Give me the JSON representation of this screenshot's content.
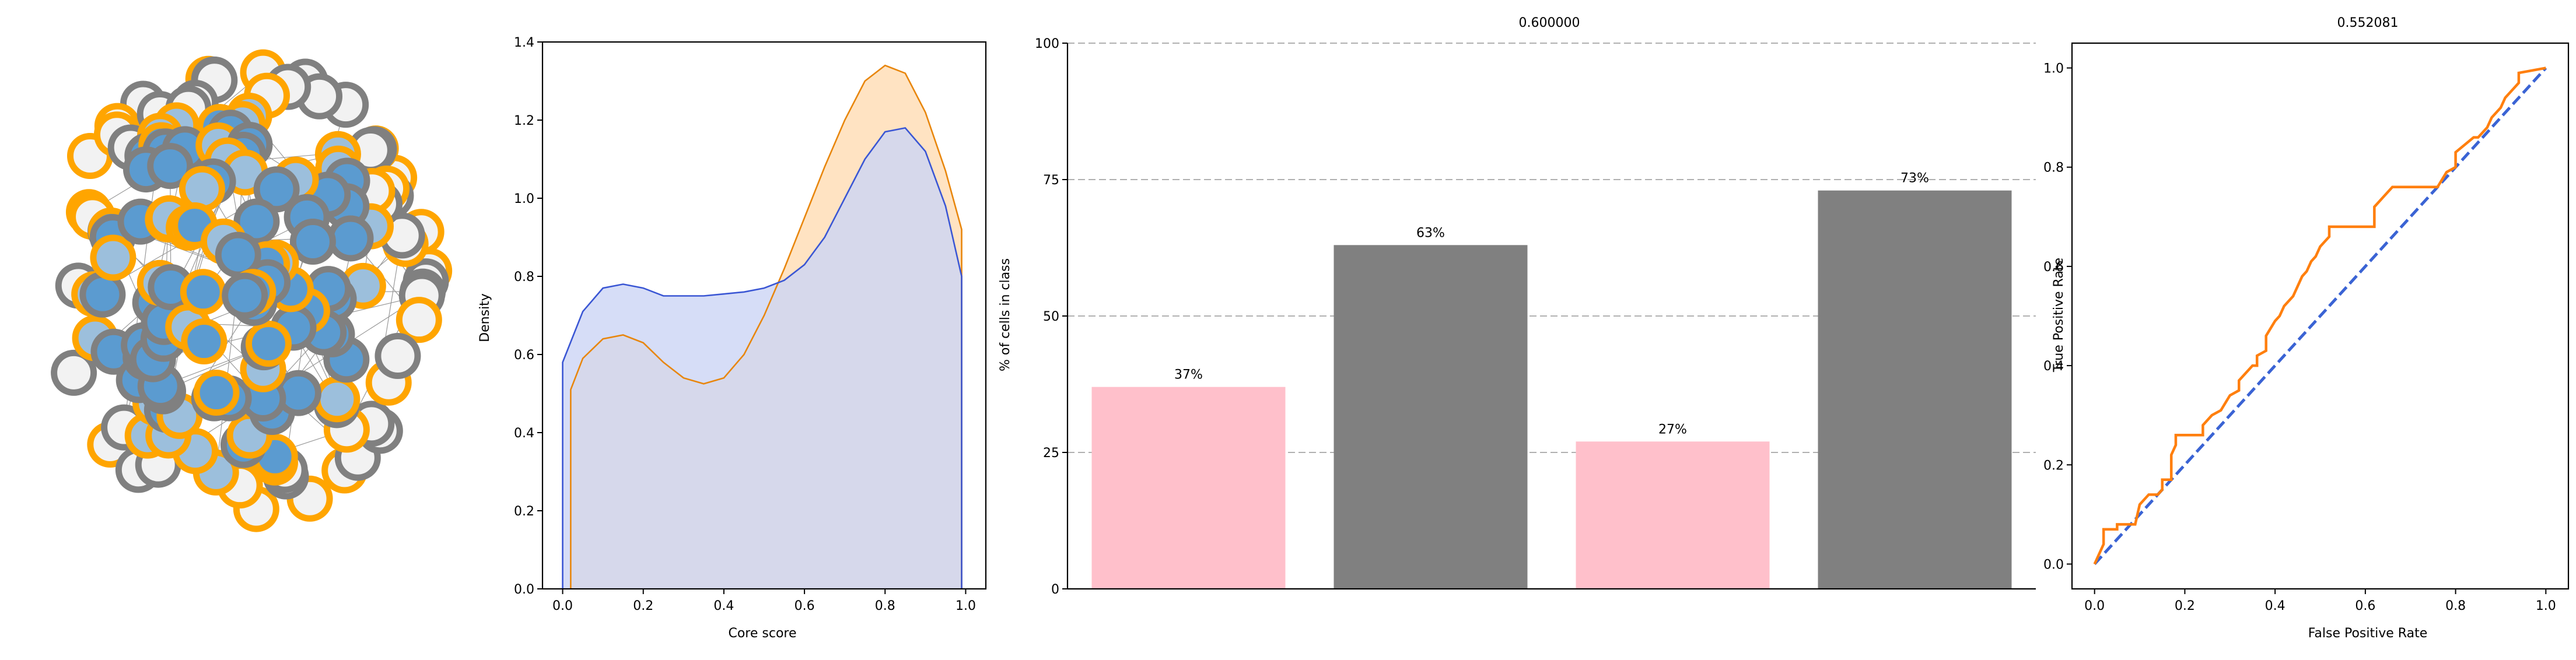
{
  "colors": {
    "core_orange": "#ffa500",
    "periphery_gray": "#808080",
    "node_light": "#f2f2f2",
    "node_pale_blue": "#9cbfdc",
    "node_blue": "#5b9bd0",
    "kde_blue": "#3a56d4",
    "kde_blue_fill": "#ccd5f5",
    "kde_orange": "#e8860c",
    "kde_orange_fill": "#ffdcb3",
    "bar_pink": "#ffc0cb",
    "bar_gray": "#808080",
    "roc_orange": "#ff7f0e",
    "roc_diag": "#3a63d4"
  },
  "chart_data": [
    {
      "type": "network",
      "title": "",
      "description_note": "",
      "nodes": [
        {
          "fill": "light",
          "ring": "gray"
        }
      ]
    },
    {
      "type": "area",
      "xlabel": "Core score",
      "ylabel": "Density",
      "xlim": [
        -0.05,
        1.05
      ],
      "ylim": [
        0,
        1.4
      ],
      "xticks": [
        "0.0",
        "0.2",
        "0.4",
        "0.6",
        "0.8",
        "1.0"
      ],
      "yticks": [
        "0.0",
        "0.2",
        "0.4",
        "0.6",
        "0.8",
        "1.0",
        "1.2",
        "1.4"
      ],
      "series": [
        {
          "color": "blue",
          "x": [
            0.0,
            0.05,
            0.1,
            0.15,
            0.2,
            0.25,
            0.3,
            0.35,
            0.4,
            0.45,
            0.5,
            0.55,
            0.6,
            0.65,
            0.7,
            0.75,
            0.8,
            0.85,
            0.9,
            0.95,
            0.99
          ],
          "y": [
            0.58,
            0.71,
            0.77,
            0.78,
            0.77,
            0.75,
            0.75,
            0.75,
            0.755,
            0.76,
            0.77,
            0.79,
            0.83,
            0.9,
            1.0,
            1.1,
            1.17,
            1.18,
            1.12,
            0.98,
            0.8
          ]
        },
        {
          "color": "orange",
          "x": [
            0.02,
            0.05,
            0.1,
            0.15,
            0.2,
            0.25,
            0.3,
            0.35,
            0.4,
            0.45,
            0.5,
            0.55,
            0.6,
            0.65,
            0.7,
            0.75,
            0.8,
            0.85,
            0.9,
            0.95,
            0.99
          ],
          "y": [
            0.51,
            0.59,
            0.64,
            0.65,
            0.63,
            0.58,
            0.54,
            0.525,
            0.54,
            0.6,
            0.7,
            0.82,
            0.95,
            1.08,
            1.2,
            1.3,
            1.34,
            1.32,
            1.22,
            1.07,
            0.92
          ]
        }
      ]
    },
    {
      "type": "bar",
      "title": "0.600000",
      "ylabel": "% of cells in class",
      "ylim": [
        0,
        100
      ],
      "yticks": [
        "0",
        "25",
        "50",
        "75",
        "100"
      ],
      "values": [
        37,
        63,
        27,
        73
      ],
      "labels": [
        "37%",
        "63%",
        "27%",
        "73%"
      ],
      "bar_colors": [
        "pink",
        "gray",
        "pink",
        "gray"
      ],
      "grid": "horizontal dashed"
    },
    {
      "type": "line",
      "title": "0.552081",
      "xlabel": "False Positive Rate",
      "ylabel": "True Positive Rate",
      "xlim": [
        -0.05,
        1.05
      ],
      "ylim": [
        -0.05,
        1.05
      ],
      "xticks": [
        "0.0",
        "0.2",
        "0.4",
        "0.6",
        "0.8",
        "1.0"
      ],
      "yticks": [
        "0.0",
        "0.2",
        "0.4",
        "0.6",
        "0.8",
        "1.0"
      ],
      "series": [
        {
          "color": "orange",
          "x": [
            0.0,
            0.02,
            0.02,
            0.05,
            0.05,
            0.09,
            0.1,
            0.12,
            0.14,
            0.15,
            0.15,
            0.17,
            0.17,
            0.18,
            0.18,
            0.24,
            0.24,
            0.26,
            0.28,
            0.3,
            0.32,
            0.32,
            0.34,
            0.35,
            0.36,
            0.36,
            0.38,
            0.38,
            0.4,
            0.41,
            0.42,
            0.44,
            0.45,
            0.46,
            0.47,
            0.48,
            0.49,
            0.5,
            0.52,
            0.52,
            0.62,
            0.62,
            0.64,
            0.66,
            0.76,
            0.78,
            0.8,
            0.8,
            0.84,
            0.85,
            0.87,
            0.88,
            0.9,
            0.91,
            0.93,
            0.94,
            0.94,
            1.0
          ],
          "y": [
            0.0,
            0.04,
            0.07,
            0.07,
            0.08,
            0.08,
            0.12,
            0.14,
            0.14,
            0.15,
            0.17,
            0.17,
            0.22,
            0.24,
            0.26,
            0.26,
            0.28,
            0.3,
            0.31,
            0.34,
            0.35,
            0.37,
            0.39,
            0.4,
            0.4,
            0.42,
            0.43,
            0.46,
            0.49,
            0.5,
            0.52,
            0.54,
            0.56,
            0.58,
            0.59,
            0.61,
            0.62,
            0.64,
            0.66,
            0.68,
            0.68,
            0.72,
            0.74,
            0.76,
            0.76,
            0.79,
            0.8,
            0.83,
            0.86,
            0.86,
            0.88,
            0.9,
            0.92,
            0.94,
            0.96,
            0.97,
            0.99,
            1.0
          ]
        },
        {
          "color": "blue",
          "style": "dashed",
          "x": [
            0.0,
            1.0
          ],
          "y": [
            0.0,
            1.0
          ]
        }
      ]
    }
  ]
}
